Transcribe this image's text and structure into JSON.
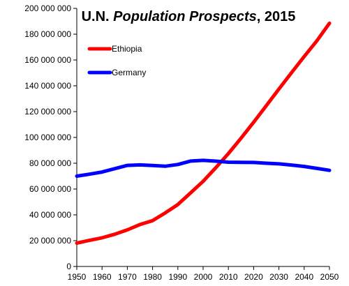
{
  "chart_data": {
    "type": "line",
    "title": {
      "prefix": "U.N. ",
      "emphasis": "Population Prospects",
      "suffix": ", 2015"
    },
    "xlabel": "",
    "ylabel": "",
    "xlim": [
      1950,
      2050
    ],
    "ylim": [
      0,
      200000000
    ],
    "x_ticks": [
      1950,
      1960,
      1970,
      1980,
      1990,
      2000,
      2010,
      2020,
      2030,
      2040,
      2050
    ],
    "y_ticks": [
      0,
      20000000,
      40000000,
      60000000,
      80000000,
      100000000,
      120000000,
      140000000,
      160000000,
      180000000,
      200000000
    ],
    "y_tick_labels": [
      "0",
      "20 000 000",
      "40 000 000",
      "60 000 000",
      "80 000 000",
      "100 000 000",
      "120 000 000",
      "140 000 000",
      "160 000 000",
      "180 000 000",
      "200 000 000"
    ],
    "grid": false,
    "legend_position": "top-left",
    "x": [
      1950,
      1955,
      1960,
      1965,
      1970,
      1975,
      1980,
      1985,
      1990,
      1995,
      2000,
      2005,
      2010,
      2015,
      2020,
      2025,
      2030,
      2035,
      2040,
      2045,
      2050
    ],
    "series": [
      {
        "name": "Ethiopia",
        "color": "#ff0000",
        "values": [
          18100000,
          20200000,
          22200000,
          25000000,
          28400000,
          32500000,
          35500000,
          41500000,
          48000000,
          57000000,
          66000000,
          76500000,
          87500000,
          99400000,
          111800000,
          124600000,
          137500000,
          150200000,
          162700000,
          174800000,
          188500000
        ]
      },
      {
        "name": "Germany",
        "color": "#0000ff",
        "values": [
          70000000,
          71500000,
          73200000,
          75800000,
          78300000,
          78700000,
          78200000,
          77700000,
          79000000,
          81700000,
          82200000,
          81600000,
          80800000,
          80700000,
          80600000,
          80000000,
          79500000,
          78600000,
          77500000,
          76000000,
          74500000
        ]
      }
    ]
  }
}
